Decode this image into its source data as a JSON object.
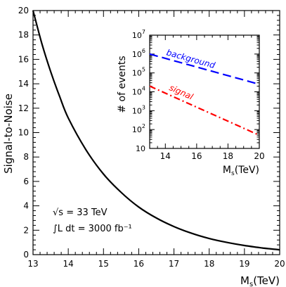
{
  "chart_data": [
    {
      "type": "line",
      "xlabel": "M_s(TeV)",
      "xlabel_main": "M",
      "xlabel_sub": "s",
      "xlabel_unit": "(TeV)",
      "ylabel": "Signal-to-Noise",
      "xlim": [
        13,
        20
      ],
      "ylim": [
        0,
        20
      ],
      "xticks": [
        "13",
        "14",
        "15",
        "16",
        "17",
        "18",
        "19",
        "20"
      ],
      "yticks": [
        "0",
        "2",
        "4",
        "6",
        "8",
        "10",
        "12",
        "14",
        "16",
        "18",
        "20"
      ],
      "annotations": [
        "√s = 33 TeV",
        "∫L dt = 3000 fb⁻¹"
      ],
      "series": [
        {
          "color": "#000000",
          "x": [
            13.0,
            13.25,
            13.5,
            13.75,
            14.0,
            14.5,
            15.0,
            15.5,
            16.0,
            16.5,
            17.0,
            17.5,
            18.0,
            18.5,
            19.0,
            19.5,
            20.0
          ],
          "y": [
            20.0,
            17.3,
            15.0,
            13.0,
            11.2,
            8.6,
            6.6,
            5.1,
            3.9,
            3.0,
            2.3,
            1.75,
            1.32,
            1.0,
            0.75,
            0.55,
            0.4
          ]
        }
      ]
    },
    {
      "type": "line",
      "inset": true,
      "xlabel": "M_s(TeV)",
      "xlabel_main": "M",
      "xlabel_sub": "s",
      "xlabel_unit": "(TeV)",
      "ylabel": "# of events",
      "xlim": [
        13,
        20
      ],
      "ylim": [
        10,
        10000000
      ],
      "log_y": true,
      "xticks": [
        "14",
        "16",
        "18",
        "20"
      ],
      "yticks": [
        {
          "base": "10",
          "exp": ""
        },
        {
          "base": "10",
          "exp": "2"
        },
        {
          "base": "10",
          "exp": "3"
        },
        {
          "base": "10",
          "exp": "4"
        },
        {
          "base": "10",
          "exp": "5"
        },
        {
          "base": "10",
          "exp": "6"
        },
        {
          "base": "10",
          "exp": "7"
        }
      ],
      "series": [
        {
          "name": "background",
          "color": "#0000ff",
          "style": "dashed",
          "x": [
            13,
            20
          ],
          "y": [
            1000000,
            25000
          ]
        },
        {
          "name": "signal",
          "color": "#ff0000",
          "style": "dash-dot",
          "x": [
            13,
            20
          ],
          "y": [
            20000,
            50
          ]
        }
      ]
    }
  ]
}
